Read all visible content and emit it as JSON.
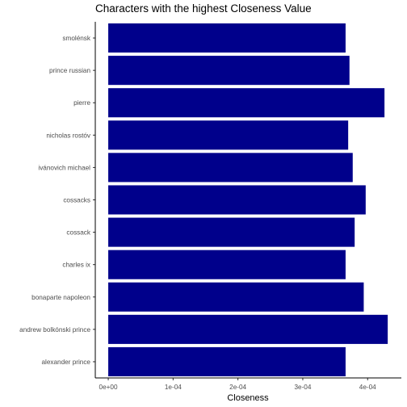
{
  "chart_data": {
    "type": "bar",
    "orientation": "horizontal",
    "title": "Characters with the highest  Closeness Value",
    "xlabel": "Closeness",
    "ylabel": "",
    "categories": [
      "smolénsk",
      "prince russian",
      "pierre",
      "nicholas rostóv",
      "ivánovich michael",
      "cossacks",
      "cossack",
      "charles ix",
      "bonaparte napoleon",
      "andrew bolkónski prince",
      "alexander prince"
    ],
    "values": [
      0.000366,
      0.000372,
      0.000426,
      0.00037,
      0.000377,
      0.000397,
      0.00038,
      0.000366,
      0.000394,
      0.000431,
      0.000366
    ],
    "xlim": [
      -2e-05,
      0.000452
    ],
    "xticks": [
      0,
      0.0001,
      0.0002,
      0.0003,
      0.0004
    ],
    "xtick_labels": [
      "0e+00",
      "1e-04",
      "2e-04",
      "3e-04",
      "4e-04"
    ],
    "grid": false,
    "bar_color": "#00008B"
  }
}
